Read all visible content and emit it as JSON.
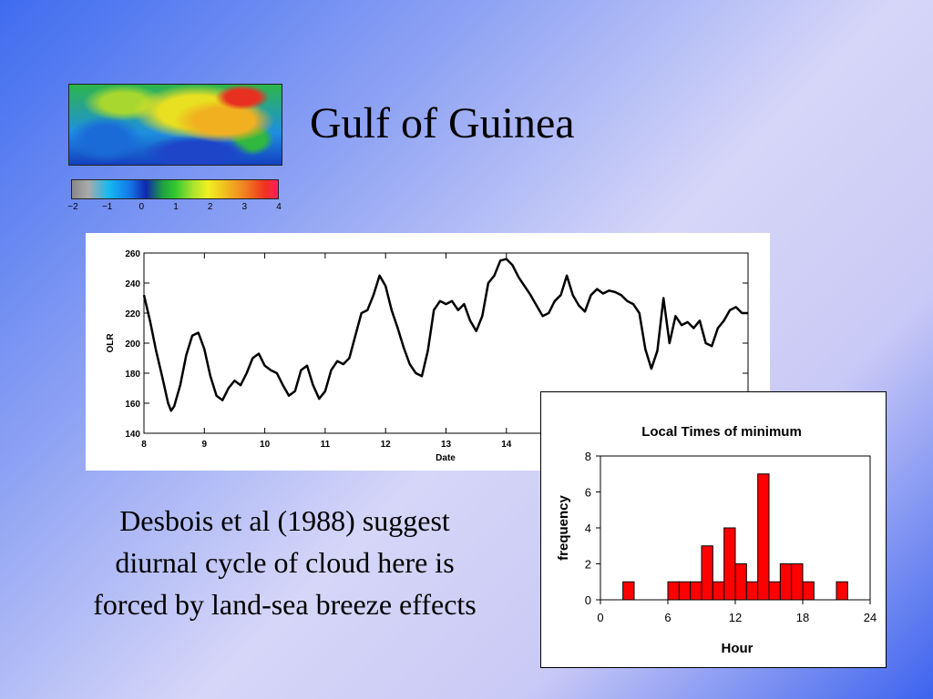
{
  "slide": {
    "title": "Gulf of Guinea",
    "caption_lines": [
      "Desbois et al (1988) suggest",
      "diurnal cycle of cloud here is",
      "forced by land-sea breeze effects"
    ],
    "colorbar_ticks": [
      "−2",
      "−1",
      "0",
      "1",
      "2",
      "3",
      "4"
    ]
  },
  "chart_data": [
    {
      "type": "line",
      "ylabel": "OLR",
      "xlabel": "Date",
      "ylim": [
        140,
        260
      ],
      "xlim": [
        8,
        18
      ],
      "yticks": [
        140,
        160,
        180,
        200,
        220,
        240,
        260
      ],
      "xticks": [
        8,
        9,
        10,
        11,
        12,
        13,
        14
      ],
      "x": [
        8.0,
        8.1,
        8.2,
        8.3,
        8.4,
        8.45,
        8.5,
        8.6,
        8.7,
        8.8,
        8.9,
        9.0,
        9.1,
        9.2,
        9.3,
        9.4,
        9.5,
        9.6,
        9.7,
        9.8,
        9.9,
        10.0,
        10.1,
        10.2,
        10.3,
        10.4,
        10.5,
        10.6,
        10.7,
        10.8,
        10.9,
        11.0,
        11.1,
        11.2,
        11.3,
        11.4,
        11.5,
        11.6,
        11.7,
        11.8,
        11.9,
        12.0,
        12.1,
        12.2,
        12.3,
        12.4,
        12.5,
        12.6,
        12.7,
        12.8,
        12.9,
        13.0,
        13.1,
        13.2,
        13.3,
        13.4,
        13.5,
        13.6,
        13.7,
        13.8,
        13.9,
        14.0,
        14.1,
        14.2,
        14.3,
        14.4,
        14.5,
        14.6,
        14.7,
        14.8,
        14.9,
        15.0,
        15.1,
        15.2,
        15.3,
        15.4,
        15.5,
        15.6,
        15.7,
        15.8,
        15.9,
        16.0,
        16.1,
        16.2,
        16.3,
        16.4,
        16.5,
        16.6,
        16.7,
        16.8,
        16.9,
        17.0,
        17.1,
        17.2,
        17.3,
        17.4,
        17.5,
        17.6,
        17.7,
        17.8,
        17.9,
        18.0
      ],
      "y": [
        232,
        215,
        195,
        178,
        160,
        155,
        158,
        172,
        192,
        205,
        207,
        196,
        178,
        165,
        162,
        170,
        175,
        172,
        180,
        190,
        193,
        185,
        182,
        180,
        172,
        165,
        168,
        182,
        185,
        172,
        163,
        168,
        182,
        188,
        186,
        190,
        205,
        220,
        222,
        232,
        245,
        238,
        222,
        210,
        197,
        186,
        180,
        178,
        195,
        222,
        228,
        226,
        228,
        222,
        226,
        215,
        208,
        218,
        240,
        245,
        255,
        256,
        252,
        244,
        238,
        232,
        225,
        218,
        220,
        228,
        232,
        245,
        232,
        225,
        221,
        232,
        236,
        233,
        235,
        234,
        232,
        228,
        226,
        220,
        196,
        183,
        195,
        230,
        200,
        218,
        212,
        214,
        210,
        215,
        200,
        198,
        210,
        215,
        222,
        224,
        220,
        220
      ]
    },
    {
      "type": "bar",
      "title": "Local Times of minimum",
      "xlabel": "Hour",
      "ylabel": "frequency",
      "xlim": [
        0,
        24
      ],
      "ylim": [
        0,
        8
      ],
      "xticks": [
        0,
        6,
        12,
        18,
        24
      ],
      "yticks": [
        0,
        2,
        4,
        6,
        8
      ],
      "bin_width": 1,
      "bin_starts": [
        2,
        6,
        7,
        8,
        9,
        10,
        11,
        12,
        13,
        14,
        15,
        16,
        17,
        18,
        21
      ],
      "values": [
        1,
        1,
        1,
        1,
        3,
        1,
        4,
        2,
        1,
        7,
        1,
        2,
        2,
        1,
        1
      ],
      "bar_color": "#ff0000"
    }
  ]
}
